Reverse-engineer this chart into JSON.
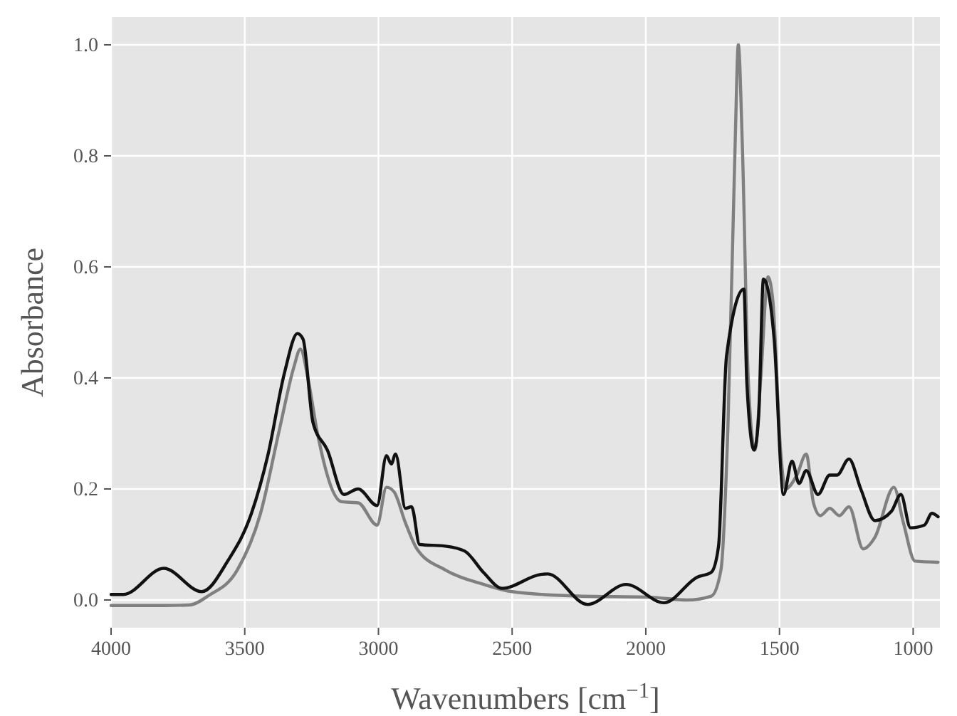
{
  "chart_data": {
    "type": "line",
    "xlabel": "Wavenumbers [cm$^{−1}$]",
    "ylabel": "Absorbance",
    "xlim": [
      4000,
      900
    ],
    "ylim": [
      -0.05,
      1.05
    ],
    "xticks": [
      4000,
      3500,
      3000,
      2500,
      2000,
      1500,
      1000
    ],
    "yticks": [
      {
        "value": 0,
        "label": "0.0"
      },
      {
        "value": 0.2,
        "label": "0.2"
      },
      {
        "value": 0.4,
        "label": "0.4"
      },
      {
        "value": 0.6,
        "label": "0.6"
      },
      {
        "value": 0.8,
        "label": "0.8"
      },
      {
        "value": 1,
        "label": "1.0"
      }
    ],
    "grid": true,
    "line_style": "solid",
    "marker": "none",
    "series": [
      {
        "color": "#808080",
        "x": [
          4000,
          3800,
          3707,
          3635,
          3528,
          3441,
          3369,
          3316,
          3292,
          3262,
          3228,
          3138,
          3076,
          3005,
          2970,
          2942,
          2899,
          2856,
          2750,
          2606,
          2500,
          2250,
          1985,
          1846,
          1755,
          1719,
          1693,
          1666,
          1654,
          1639,
          1617,
          1592,
          1570,
          1543,
          1525,
          1496,
          1478,
          1435,
          1400,
          1373,
          1347,
          1312,
          1276,
          1240,
          1187,
          1143,
          1072,
          1037,
          993,
          907
        ],
        "values": [
          -0.01,
          -0.01,
          -0.009,
          0.008,
          0.054,
          0.156,
          0.31,
          0.42,
          0.452,
          0.395,
          0.3,
          0.177,
          0.175,
          0.135,
          0.203,
          0.195,
          0.139,
          0.092,
          0.054,
          0.028,
          0.015,
          0.007,
          0.005,
          0,
          0.007,
          0.054,
          0.31,
          0.82,
          1.0,
          0.82,
          0.4,
          0.27,
          0.4,
          0.582,
          0.54,
          0.27,
          0.2,
          0.225,
          0.263,
          0.175,
          0.152,
          0.165,
          0.152,
          0.168,
          0.092,
          0.113,
          0.203,
          0.14,
          0.07,
          0.068
        ]
      },
      {
        "color": "#111111",
        "x": [
          4000,
          3954,
          3803,
          3661,
          3564,
          3475,
          3414,
          3351,
          3303,
          3282,
          3245,
          3191,
          3129,
          3076,
          3005,
          2970,
          2952,
          2936,
          2899,
          2876,
          2846,
          2750,
          2677,
          2606,
          2537,
          2393,
          2367,
          2218,
          2074,
          1932,
          1808,
          1755,
          1728,
          1698,
          1633,
          1622,
          1595,
          1578,
          1560,
          1533,
          1520,
          1485,
          1453,
          1427,
          1400,
          1356,
          1312,
          1285,
          1240,
          1196,
          1143,
          1081,
          1046,
          1010,
          958,
          930,
          907
        ],
        "values": [
          0.01,
          0.01,
          0.057,
          0.015,
          0.07,
          0.156,
          0.26,
          0.41,
          0.48,
          0.47,
          0.32,
          0.27,
          0.19,
          0.2,
          0.17,
          0.26,
          0.245,
          0.263,
          0.165,
          0.168,
          0.1,
          0.097,
          0.088,
          0.049,
          0.021,
          0.046,
          0.047,
          -0.008,
          0.028,
          -0.005,
          0.041,
          0.05,
          0.097,
          0.44,
          0.56,
          0.39,
          0.27,
          0.33,
          0.578,
          0.53,
          0.47,
          0.19,
          0.25,
          0.21,
          0.233,
          0.19,
          0.225,
          0.225,
          0.254,
          0.2,
          0.143,
          0.16,
          0.19,
          0.13,
          0.135,
          0.156,
          0.15
        ]
      }
    ]
  }
}
